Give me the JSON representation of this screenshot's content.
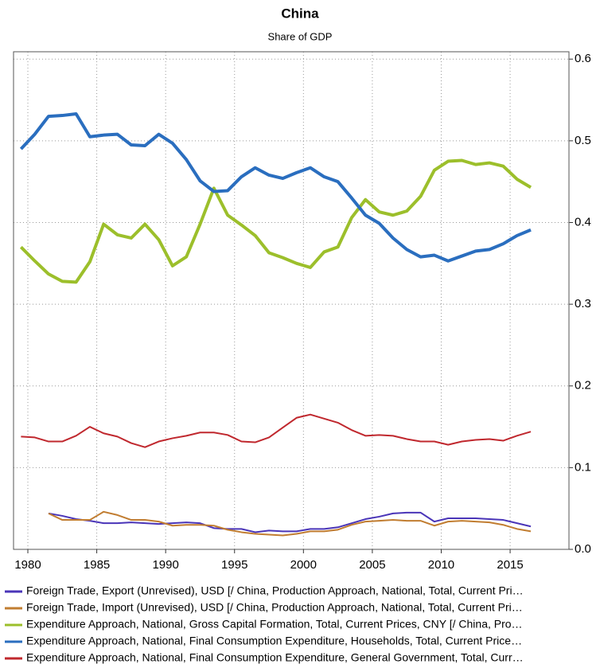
{
  "chart_data": {
    "type": "line",
    "title": "China",
    "subtitle": "Share of GDP",
    "x": [
      1979.5,
      1980.5,
      1981.5,
      1982.5,
      1983.5,
      1984.5,
      1985.5,
      1986.5,
      1987.5,
      1988.5,
      1989.5,
      1990.5,
      1991.5,
      1992.5,
      1993.5,
      1994.5,
      1995.5,
      1996.5,
      1997.5,
      1998.5,
      1999.5,
      2000.5,
      2001.5,
      2002.5,
      2003.5,
      2004.5,
      2005.5,
      2006.5,
      2007.5,
      2008.5,
      2009.5,
      2010.5,
      2011.5,
      2012.5,
      2013.5,
      2014.5,
      2015.5,
      2016.5
    ],
    "series": [
      {
        "name": "Foreign Trade, Export (Unrevised), USD [/ China, Production Approach, National, Total, Current Pri…",
        "color": "#4a35b8",
        "values": [
          null,
          null,
          0.044,
          0.041,
          0.037,
          0.035,
          0.032,
          0.032,
          0.033,
          0.032,
          0.031,
          0.032,
          0.033,
          0.032,
          0.026,
          0.025,
          0.025,
          0.021,
          0.023,
          0.022,
          0.022,
          0.025,
          0.025,
          0.027,
          0.032,
          0.037,
          0.04,
          0.044,
          0.045,
          0.045,
          0.034,
          0.038,
          0.038,
          0.038,
          0.037,
          0.036,
          0.032,
          0.028
        ]
      },
      {
        "name": "Foreign Trade, Import (Unrevised), USD [/ China, Production Approach, National, Total, Current Pri…",
        "color": "#c17d31",
        "values": [
          null,
          null,
          0.044,
          0.036,
          0.036,
          0.036,
          0.046,
          0.042,
          0.036,
          0.036,
          0.034,
          0.029,
          0.03,
          0.03,
          0.029,
          0.024,
          0.021,
          0.019,
          0.018,
          0.017,
          0.019,
          0.022,
          0.022,
          0.024,
          0.03,
          0.034,
          0.035,
          0.036,
          0.035,
          0.035,
          0.029,
          0.034,
          0.035,
          0.034,
          0.033,
          0.03,
          0.025,
          0.022
        ]
      },
      {
        "name": "Expenditure Approach, National, Gross Capital Formation, Total, Current Prices, CNY [/ China, Pro…",
        "color": "#9cbf2b",
        "values": [
          0.37,
          0.353,
          0.337,
          0.328,
          0.327,
          0.352,
          0.398,
          0.385,
          0.381,
          0.398,
          0.379,
          0.347,
          0.358,
          0.398,
          0.442,
          0.409,
          0.397,
          0.384,
          0.363,
          0.357,
          0.35,
          0.345,
          0.364,
          0.37,
          0.406,
          0.428,
          0.413,
          0.409,
          0.414,
          0.432,
          0.464,
          0.475,
          0.476,
          0.471,
          0.473,
          0.469,
          0.453,
          0.443
        ]
      },
      {
        "name": "Expenditure Approach, National, Final Consumption Expenditure, Households, Total, Current Price…",
        "color": "#2a6ebf",
        "values": [
          0.49,
          0.508,
          0.53,
          0.531,
          0.533,
          0.505,
          0.507,
          0.508,
          0.495,
          0.494,
          0.508,
          0.497,
          0.477,
          0.451,
          0.438,
          0.439,
          0.456,
          0.467,
          0.458,
          0.454,
          0.461,
          0.467,
          0.456,
          0.45,
          0.43,
          0.409,
          0.399,
          0.381,
          0.367,
          0.358,
          0.36,
          0.353,
          0.359,
          0.365,
          0.367,
          0.374,
          0.384,
          0.391
        ]
      },
      {
        "name": "Expenditure Approach, National, Final Consumption Expenditure, General Government, Total, Curr…",
        "color": "#c0282e",
        "values": [
          0.138,
          0.137,
          0.132,
          0.132,
          0.139,
          0.15,
          0.142,
          0.138,
          0.13,
          0.125,
          0.132,
          0.136,
          0.139,
          0.143,
          0.143,
          0.14,
          0.132,
          0.131,
          0.137,
          0.149,
          0.161,
          0.165,
          0.16,
          0.155,
          0.146,
          0.139,
          0.14,
          0.139,
          0.135,
          0.132,
          0.132,
          0.128,
          0.132,
          0.134,
          0.135,
          0.133,
          0.139,
          0.144
        ]
      }
    ],
    "xlim": [
      1978.96,
      2019.27
    ],
    "xticks": [
      1980,
      1985,
      1990,
      1995,
      2000,
      2005,
      2010,
      2015
    ],
    "ylim": [
      0,
      0.609
    ],
    "yticks": [
      {
        "value": 0,
        "label": "0.0"
      },
      0.1,
      0.2,
      0.3,
      0.4,
      0.5,
      0.6
    ],
    "grid": true
  }
}
